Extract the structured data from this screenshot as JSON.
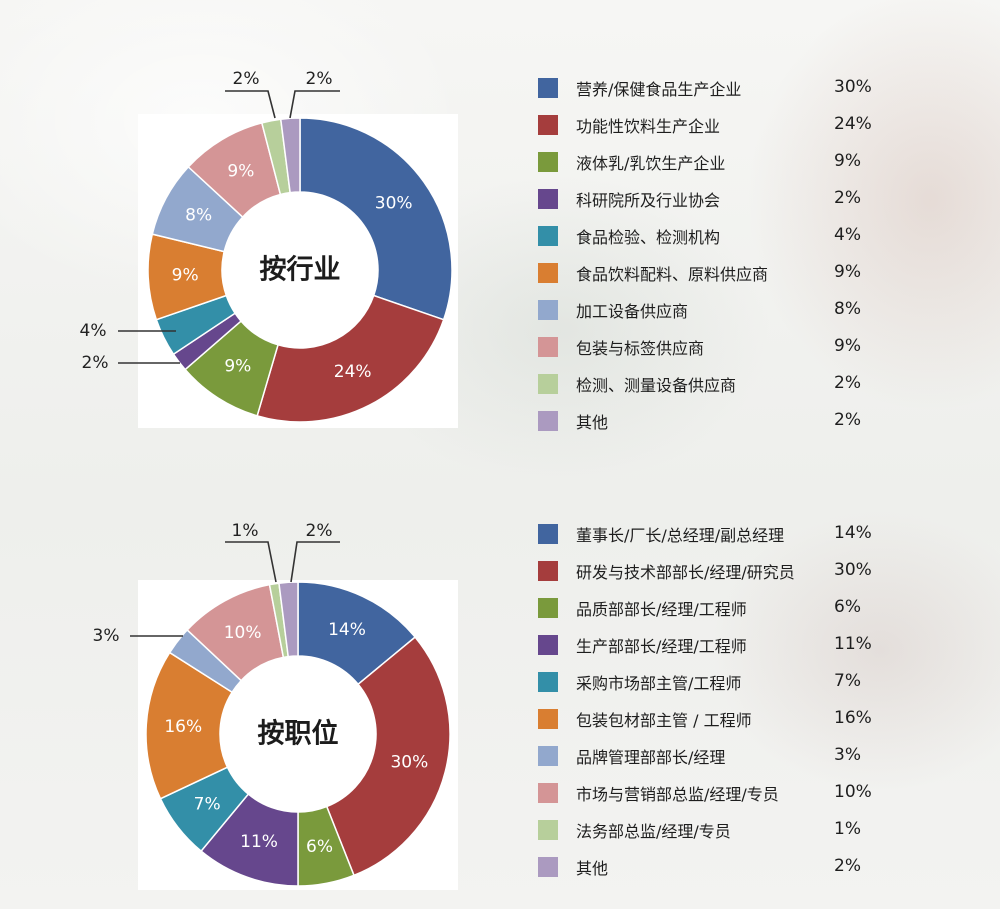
{
  "chart_data": [
    {
      "type": "pie",
      "donut": true,
      "center_label": "按行业",
      "categories": [
        "营养/保健食品生产企业",
        "功能性饮料生产企业",
        "液体乳/乳饮生产企业",
        "科研院所及行业协会",
        "食品检验、检测机构",
        "食品饮料配料、原料供应商",
        "加工设备供应商",
        "包装与标签供应商",
        "检测、测量设备供应商",
        "其他"
      ],
      "values": [
        30,
        24,
        9,
        2,
        4,
        9,
        8,
        9,
        2,
        2
      ],
      "labels": [
        "30%",
        "24%",
        "9%",
        "2%",
        "4%",
        "9%",
        "8%",
        "9%",
        "2%",
        "2%"
      ],
      "colors": [
        "#41659f",
        "#a53d3d",
        "#7a9a3c",
        "#66478d",
        "#338fa8",
        "#d97e31",
        "#92a8cd",
        "#d49596",
        "#b7cf9b",
        "#ab9ac0"
      ],
      "legend_placement": "right"
    },
    {
      "type": "pie",
      "donut": true,
      "center_label": "按职位",
      "categories": [
        "董事长/厂长/总经理/副总经理",
        "研发与技术部部长/经理/研究员",
        "品质部部长/经理/工程师",
        "生产部部长/经理/工程师",
        "采购市场部主管/工程师",
        "包装包材部主管 / 工程师",
        "品牌管理部部长/经理",
        "市场与营销部总监/经理/专员",
        "法务部总监/经理/专员",
        "其他"
      ],
      "values": [
        14,
        30,
        6,
        11,
        7,
        16,
        3,
        10,
        1,
        2
      ],
      "labels": [
        "14%",
        "30%",
        "6%",
        "11%",
        "7%",
        "16%",
        "3%",
        "10%",
        "1%",
        "2%"
      ],
      "colors": [
        "#41659f",
        "#a53d3d",
        "#7a9a3c",
        "#66478d",
        "#338fa8",
        "#d97e31",
        "#92a8cd",
        "#d49596",
        "#b7cf9b",
        "#ab9ac0"
      ],
      "legend_placement": "right"
    }
  ]
}
